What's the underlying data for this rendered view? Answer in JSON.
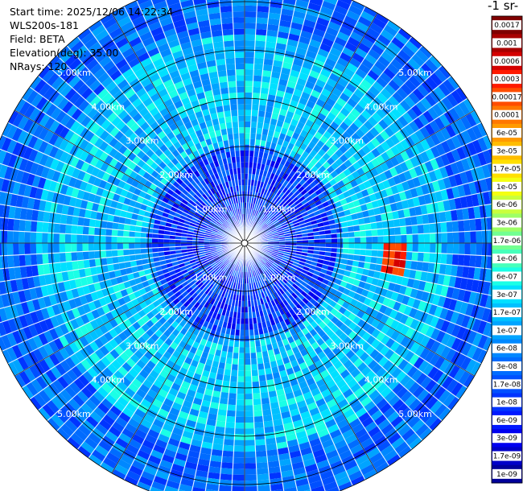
{
  "info": {
    "start_time": "Start time: 2025/12/06 14:22:34",
    "device": "WLS200s-181",
    "field": "Field: BETA",
    "elevation": "Elevation(deg): 35.00",
    "nrays": "NRays: 120"
  },
  "colorbar": {
    "title": "-1 sr-",
    "labels": [
      "0.0017",
      "0.001",
      "0.0006",
      "0.0003",
      "0.00017",
      "0.0001",
      "6e-05",
      "3e-05",
      "1.7e-05",
      "1e-05",
      "6e-06",
      "3e-06",
      "1.7e-06",
      "1e-06",
      "6e-07",
      "3e-07",
      "1.7e-07",
      "1e-07",
      "6e-08",
      "3e-08",
      "1.7e-08",
      "1e-08",
      "6e-09",
      "3e-09",
      "1.7e-09",
      "1e-09"
    ],
    "colors": [
      "#7f0000",
      "#a80000",
      "#d40000",
      "#ff1a00",
      "#ff4d00",
      "#ff7700",
      "#ff9a00",
      "#ffbd00",
      "#ffe000",
      "#f4ff12",
      "#c9ff3c",
      "#9dff66",
      "#72ff91",
      "#47ffbb",
      "#1affe6",
      "#00e0ff",
      "#00c0ff",
      "#00a4ff",
      "#0088ff",
      "#006cff",
      "#0050ff",
      "#0034ff",
      "#0018ff",
      "#0000f0",
      "#0000c8",
      "#00009a"
    ]
  },
  "chart_data": {
    "type": "heatmap",
    "projection": "polar (plan position indicator)",
    "field": "BETA",
    "elevation_deg": 35.0,
    "n_rays": 120,
    "range_rings_km": [
      1,
      2,
      3,
      4,
      5
    ],
    "ring_labels": [
      "1.00km",
      "2.00km",
      "3.00km",
      "4.00km",
      "5.00km"
    ],
    "max_range_km": 5.5,
    "color_scale": "log",
    "value_range": [
      1e-09,
      0.0017
    ],
    "features": [
      {
        "description": "background near range",
        "range_km": [
          0,
          1.9
        ],
        "value": 1e-08
      },
      {
        "description": "elevated ring",
        "range_km": [
          2.0,
          4.3
        ],
        "value": 1.7e-07
      },
      {
        "description": "outer background",
        "range_km": [
          4.3,
          5.5
        ],
        "value": 3e-08
      },
      {
        "description": "strong echo east",
        "azimuth_deg": [
          91,
          103
        ],
        "range_km": [
          2.9,
          3.3
        ],
        "value": 0.0003
      }
    ]
  }
}
